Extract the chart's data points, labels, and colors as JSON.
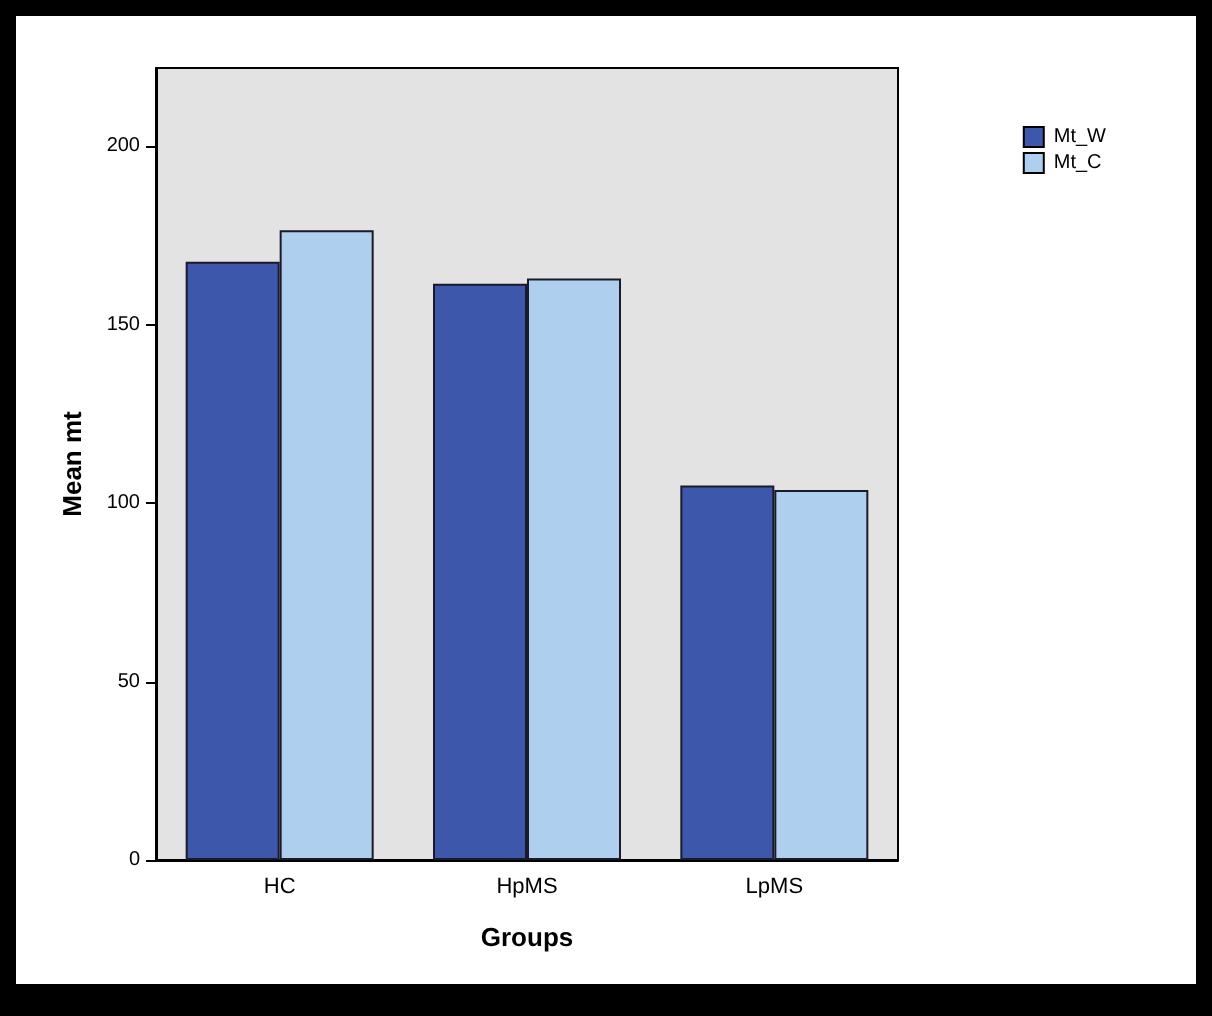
{
  "chart_data": {
    "type": "bar",
    "xlabel": "Groups",
    "ylabel": "Mean mt",
    "categories": [
      "HC",
      "HpMS",
      "LpMS"
    ],
    "series": [
      {
        "name": "Mt_W",
        "color": "#3d57ab",
        "values": [
          167.7,
          161.5,
          105
        ]
      },
      {
        "name": "Mt_C",
        "color": "#aed0ee",
        "values": [
          176.5,
          163,
          103.7
        ]
      }
    ],
    "ylim": [
      0,
      222
    ],
    "yticks": [
      0,
      50,
      100,
      150,
      200
    ],
    "grid": false,
    "legend": "top right"
  }
}
